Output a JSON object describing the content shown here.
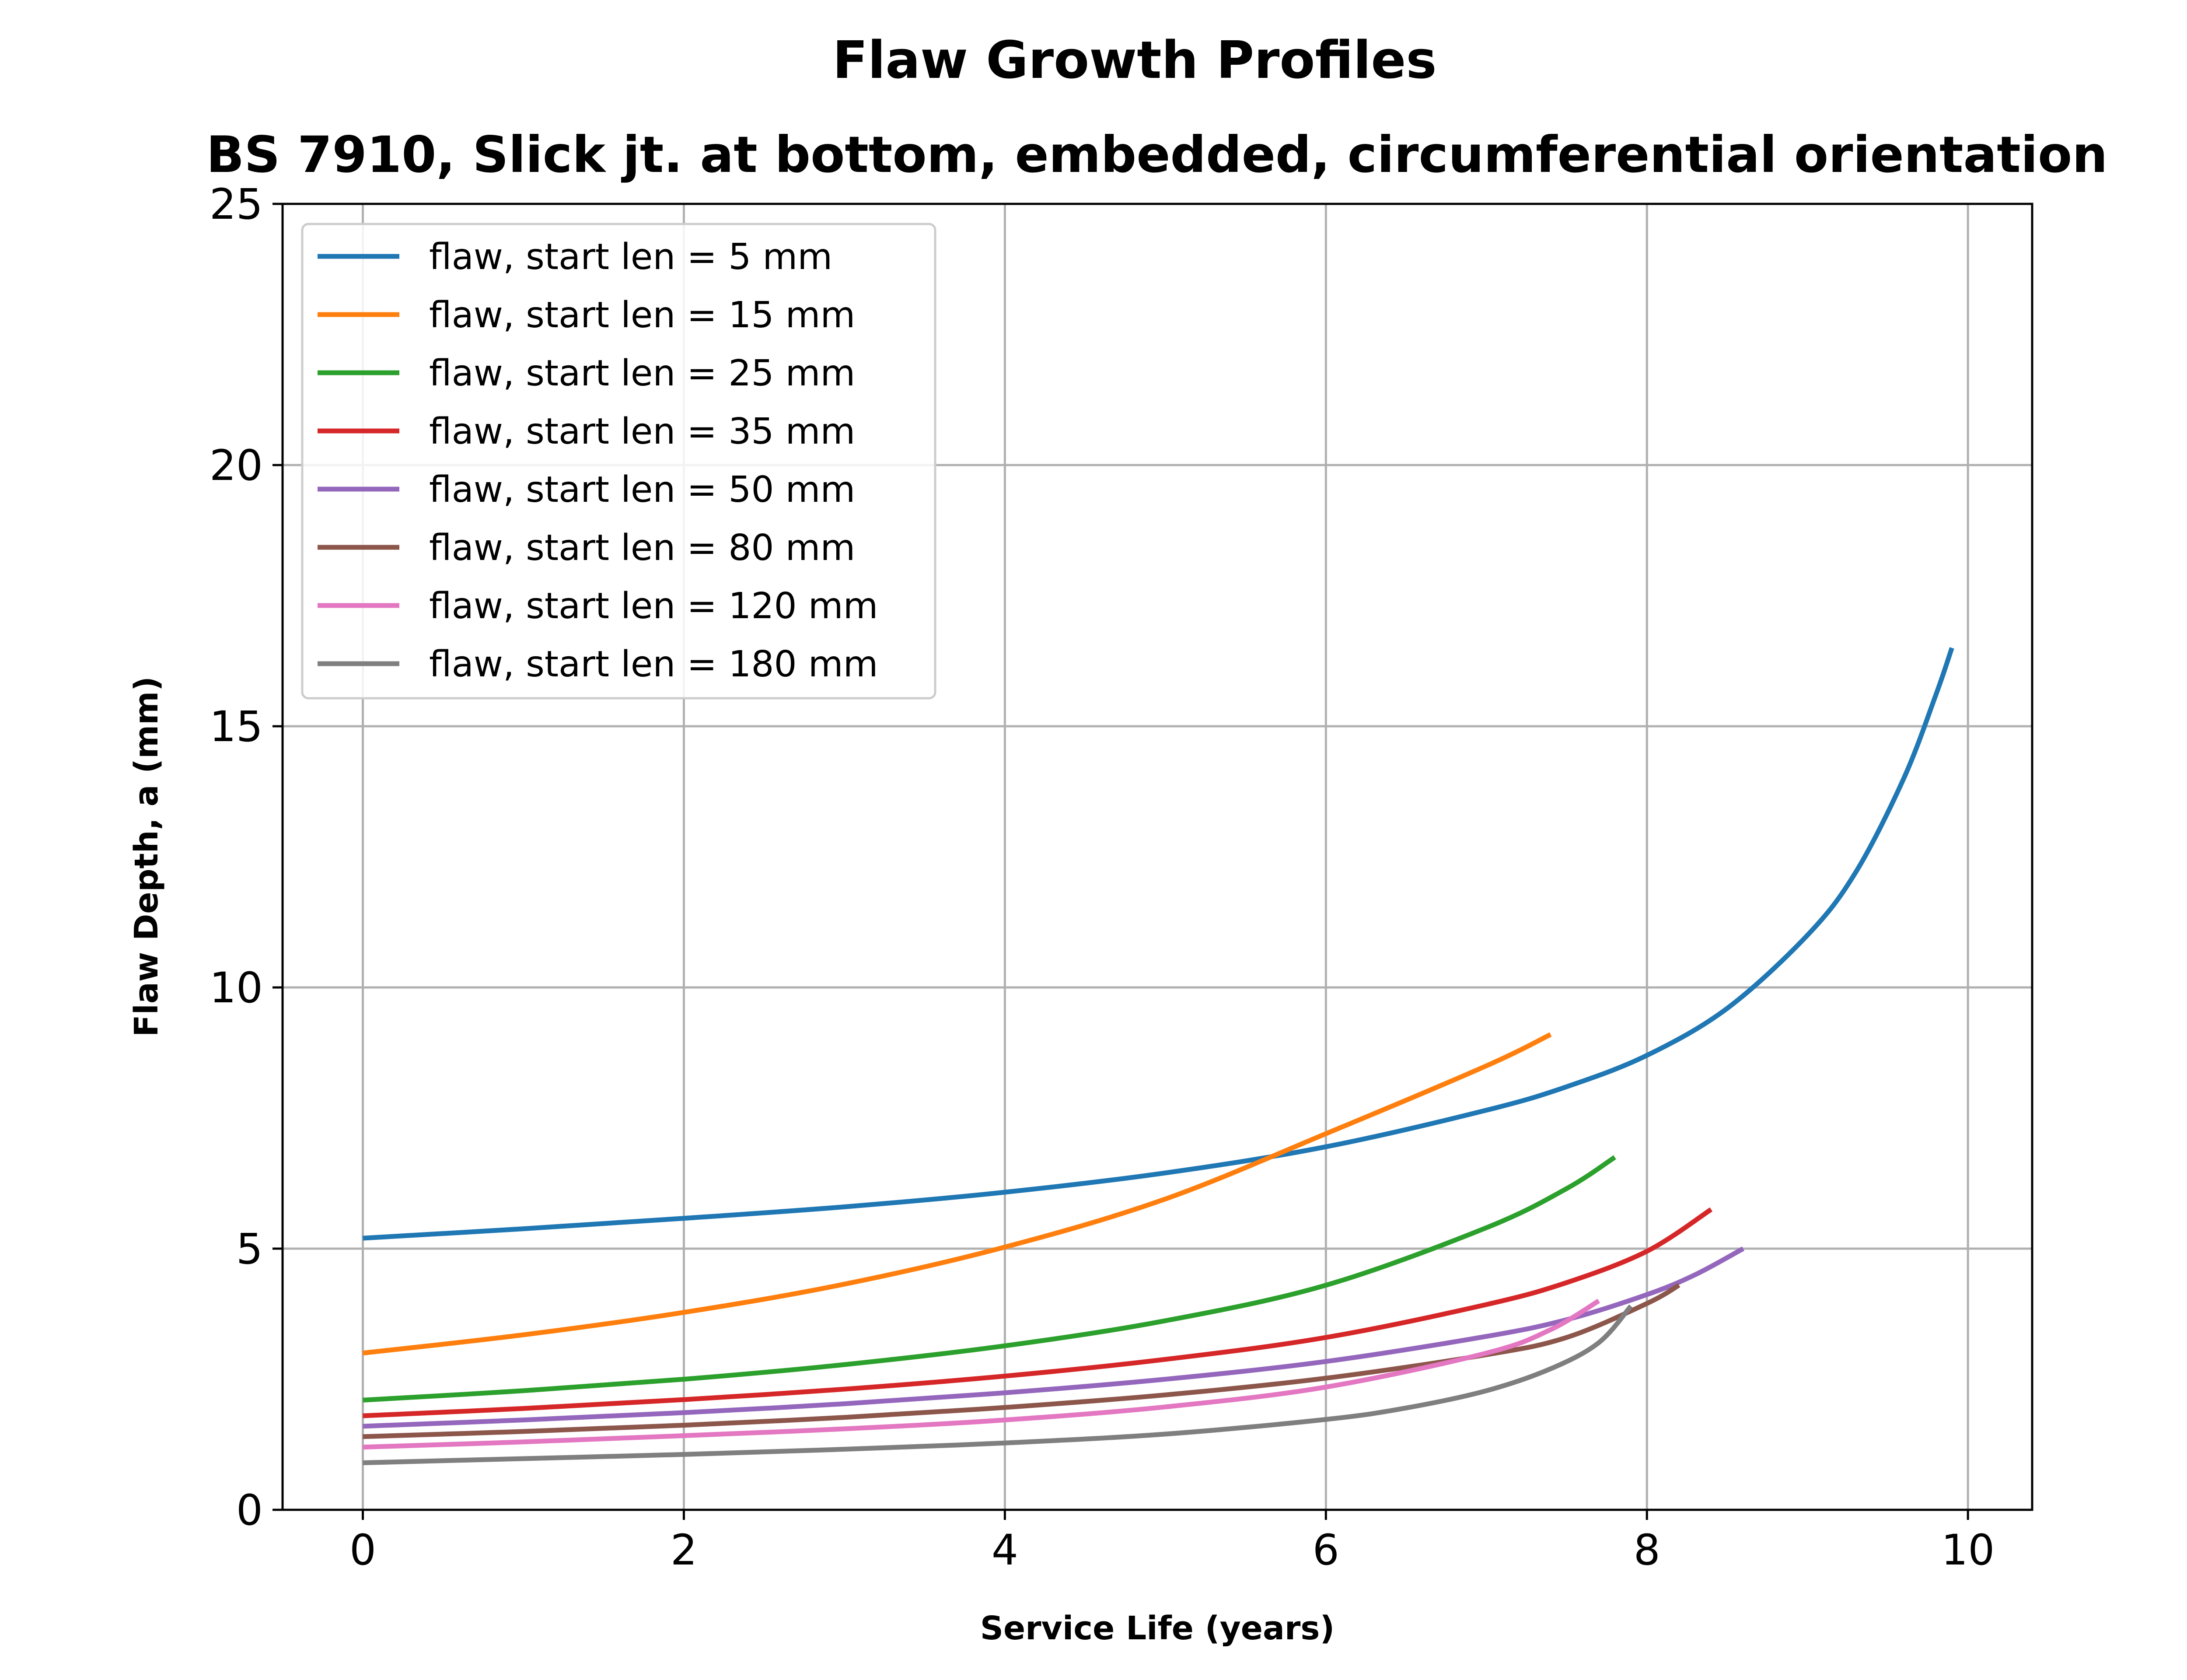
{
  "chart_data": {
    "type": "line",
    "title": "Flaw Growth Profiles",
    "subtitle": "BS 7910, Slick jt. at bottom, embedded, circumferential orientation",
    "xlabel": "Service Life (years)",
    "ylabel": "Flaw Depth, a (mm)",
    "xlim": [
      -0.5,
      10.4
    ],
    "ylim": [
      0,
      25
    ],
    "xticks": [
      0,
      2,
      4,
      6,
      8,
      10
    ],
    "yticks": [
      0,
      5,
      10,
      15,
      20,
      25
    ],
    "xtick_labels": [
      "0",
      "2",
      "4",
      "6",
      "8",
      "10"
    ],
    "ytick_labels": [
      "0",
      "5",
      "10",
      "15",
      "20",
      "25"
    ],
    "grid": true,
    "legend_position": "upper-left",
    "series": [
      {
        "name": "flaw, start len = 5 mm",
        "color": "#1f77b4",
        "x": [
          0,
          1,
          2,
          3,
          4,
          5,
          6,
          7,
          7.5,
          8,
          8.5,
          9,
          9.3,
          9.6,
          9.8,
          9.9
        ],
        "y": [
          5.2,
          5.38,
          5.58,
          5.8,
          6.08,
          6.45,
          6.95,
          7.65,
          8.1,
          8.7,
          9.6,
          11.0,
          12.2,
          14.0,
          15.6,
          16.5
        ]
      },
      {
        "name": "flaw, start len = 15 mm",
        "color": "#ff7f0e",
        "x": [
          0,
          1,
          2,
          3,
          4,
          5,
          6,
          7,
          7.4
        ],
        "y": [
          3.0,
          3.35,
          3.78,
          4.32,
          5.03,
          5.95,
          7.2,
          8.5,
          9.1
        ]
      },
      {
        "name": "flaw, start len = 25 mm",
        "color": "#2ca02c",
        "x": [
          0,
          1,
          2,
          3,
          4,
          5,
          6,
          7,
          7.5,
          7.8
        ],
        "y": [
          2.1,
          2.28,
          2.5,
          2.78,
          3.14,
          3.62,
          4.3,
          5.4,
          6.15,
          6.75
        ]
      },
      {
        "name": "flaw, start len = 35 mm",
        "color": "#d62728",
        "x": [
          0,
          1,
          2,
          3,
          4,
          5,
          6,
          7,
          7.5,
          8,
          8.4
        ],
        "y": [
          1.8,
          1.94,
          2.11,
          2.31,
          2.56,
          2.88,
          3.3,
          3.93,
          4.35,
          4.95,
          5.75
        ]
      },
      {
        "name": "flaw, start len = 50 mm",
        "color": "#9467bd",
        "x": [
          0,
          1,
          2,
          3,
          4,
          5,
          6,
          7,
          7.5,
          8,
          8.3,
          8.6
        ],
        "y": [
          1.6,
          1.72,
          1.86,
          2.03,
          2.24,
          2.5,
          2.84,
          3.32,
          3.64,
          4.12,
          4.5,
          5.0
        ]
      },
      {
        "name": "flaw, start len = 80 mm",
        "color": "#8c564b",
        "x": [
          0,
          1,
          2,
          3,
          4,
          5,
          6,
          7,
          7.5,
          8,
          8.2
        ],
        "y": [
          1.4,
          1.5,
          1.62,
          1.77,
          1.96,
          2.2,
          2.52,
          2.97,
          3.3,
          3.95,
          4.3
        ]
      },
      {
        "name": "flaw, start len = 120 mm",
        "color": "#e377c2",
        "x": [
          0,
          1,
          2,
          3,
          4,
          5,
          6,
          7,
          7.4,
          7.7
        ],
        "y": [
          1.2,
          1.3,
          1.42,
          1.55,
          1.72,
          1.97,
          2.35,
          3.0,
          3.45,
          4.0
        ]
      },
      {
        "name": "flaw, start len = 180 mm",
        "color": "#7f7f7f",
        "x": [
          0,
          1,
          2,
          3,
          4,
          5,
          6,
          6.5,
          7,
          7.4,
          7.7,
          7.9
        ],
        "y": [
          0.9,
          0.98,
          1.06,
          1.16,
          1.28,
          1.45,
          1.73,
          1.95,
          2.28,
          2.7,
          3.2,
          3.9
        ]
      }
    ]
  }
}
